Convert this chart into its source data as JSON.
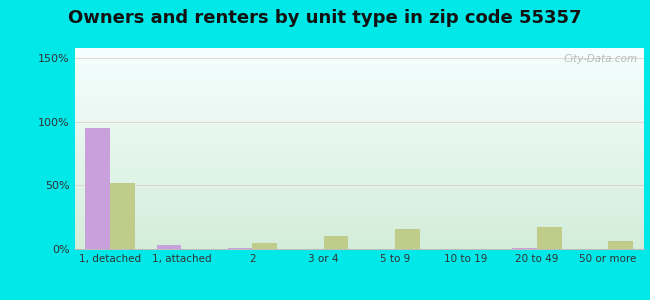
{
  "title": "Owners and renters by unit type in zip code 55357",
  "categories": [
    "1, detached",
    "1, attached",
    "2",
    "3 or 4",
    "5 to 9",
    "10 to 19",
    "20 to 49",
    "50 or more"
  ],
  "owner_values": [
    95,
    3,
    0.5,
    0,
    0,
    0,
    0.5,
    0
  ],
  "renter_values": [
    52,
    0,
    5,
    10,
    16,
    0,
    17,
    6
  ],
  "owner_color": "#c9a0dc",
  "renter_color": "#bfcc8a",
  "title_fontsize": 13,
  "ylabel_ticks": [
    "0%",
    "50%",
    "100%",
    "150%"
  ],
  "ytick_vals": [
    0,
    50,
    100,
    150
  ],
  "ylim": [
    0,
    158
  ],
  "outer_background": "#00e8e8",
  "watermark": "City-Data.com",
  "bar_width": 0.35,
  "grad_top": "#f5ffff",
  "grad_bottom": "#d4edda"
}
